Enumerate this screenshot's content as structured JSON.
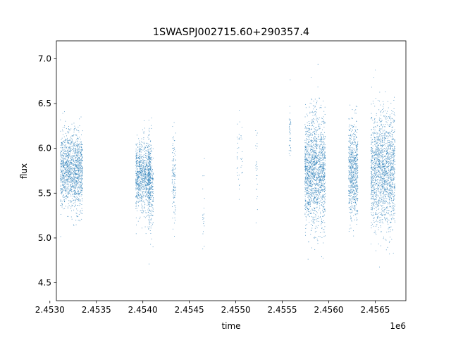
{
  "chart_data": {
    "type": "scatter",
    "title": "1SWASPJ002715.60+290357.4",
    "xlabel": "time",
    "ylabel": "flux",
    "x_offset_label": "1e6",
    "xlim": [
      2.45307,
      2.45683
    ],
    "ylim": [
      4.3,
      7.2
    ],
    "x_ticks": [
      2.453,
      2.4535,
      2.454,
      2.4545,
      2.455,
      2.4555,
      2.456,
      2.4565
    ],
    "x_tick_labels": [
      "2.4530",
      "2.4535",
      "2.4540",
      "2.4545",
      "2.4550",
      "2.4555",
      "2.4560",
      "2.4565"
    ],
    "y_ticks": [
      4.5,
      5.0,
      5.5,
      6.0,
      6.5,
      7.0
    ],
    "y_tick_labels": [
      "4.5",
      "5.0",
      "5.5",
      "6.0",
      "6.5",
      "7.0"
    ],
    "grid": false,
    "marker_color": "#1f77b4",
    "clusters": [
      {
        "x_center": 2.45323,
        "x_halfwidth": 0.00012,
        "y_mean": 5.75,
        "y_spread": 0.28,
        "n": 1400
      },
      {
        "x_center": 2.454,
        "x_halfwidth": 8e-05,
        "y_mean": 5.7,
        "y_spread": 0.26,
        "n": 900
      },
      {
        "x_center": 2.45408,
        "x_halfwidth": 3e-05,
        "y_mean": 5.6,
        "y_spread": 0.35,
        "n": 300
      },
      {
        "x_center": 2.45433,
        "x_halfwidth": 2e-05,
        "y_mean": 5.7,
        "y_spread": 0.3,
        "n": 120
      },
      {
        "x_center": 2.45465,
        "x_halfwidth": 1e-05,
        "y_mean": 5.2,
        "y_spread": 0.35,
        "n": 20
      },
      {
        "x_center": 2.45504,
        "x_halfwidth": 3e-05,
        "y_mean": 5.9,
        "y_spread": 0.35,
        "n": 40
      },
      {
        "x_center": 2.45522,
        "x_halfwidth": 1e-05,
        "y_mean": 5.8,
        "y_spread": 0.3,
        "n": 25
      },
      {
        "x_center": 2.45558,
        "x_halfwidth": 1e-05,
        "y_mean": 6.1,
        "y_spread": 0.25,
        "n": 40
      },
      {
        "x_center": 2.45585,
        "x_halfwidth": 0.00011,
        "y_mean": 5.75,
        "y_spread": 0.42,
        "n": 1600
      },
      {
        "x_center": 2.45626,
        "x_halfwidth": 5e-05,
        "y_mean": 5.75,
        "y_spread": 0.35,
        "n": 700
      },
      {
        "x_center": 2.45658,
        "x_halfwidth": 0.00013,
        "y_mean": 5.75,
        "y_spread": 0.42,
        "n": 1700
      }
    ]
  }
}
